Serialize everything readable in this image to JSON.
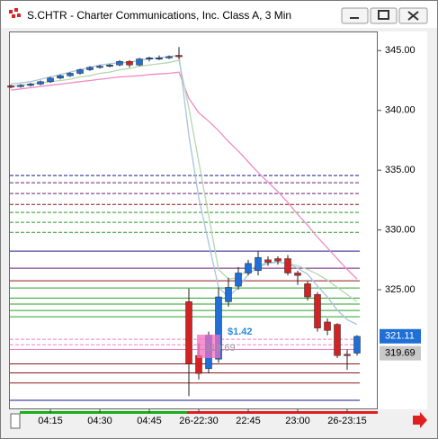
{
  "window_title": "S.CHTR - Charter Communications, Inc. Class A, 3 Min",
  "chart_data": {
    "type": "candlestick",
    "categories": [
      null,
      null,
      null,
      null,
      "04:15",
      null,
      null,
      null,
      null,
      "04:30",
      null,
      null,
      null,
      null,
      "04:45",
      null,
      null,
      null,
      null,
      "26-22:30",
      null,
      null,
      null,
      null,
      "22:45",
      null,
      null,
      null,
      null,
      "23:00",
      null,
      null,
      null,
      null,
      "26-23:15",
      null
    ],
    "open": [
      342.05,
      342.0,
      342.1,
      342.2,
      342.4,
      342.7,
      342.9,
      343.1,
      343.4,
      343.6,
      343.7,
      343.8,
      344.1,
      343.8,
      344.3,
      344.4,
      344.4,
      344.6,
      324.0,
      319.5,
      318.4,
      319.2,
      324.0,
      325.3,
      326.4,
      326.6,
      327.5,
      327.6,
      327.6,
      326.4,
      325.5,
      324.6,
      322.3,
      322.1,
      319.6,
      319.7
    ],
    "high": [
      342.15,
      342.2,
      342.3,
      342.5,
      342.8,
      343.0,
      343.2,
      343.5,
      343.7,
      343.8,
      343.9,
      344.2,
      344.2,
      344.4,
      344.5,
      344.6,
      344.6,
      345.3,
      325.1,
      320.5,
      321.5,
      325.2,
      326.0,
      326.9,
      327.5,
      328.2,
      327.8,
      327.8,
      327.9,
      326.6,
      325.7,
      324.8,
      322.6,
      322.2,
      320.0,
      321.2
    ],
    "low": [
      341.85,
      341.9,
      342.0,
      342.1,
      342.3,
      342.6,
      342.8,
      343.0,
      343.3,
      343.5,
      343.6,
      343.7,
      343.6,
      343.7,
      344.1,
      344.2,
      344.3,
      344.3,
      316.1,
      317.5,
      318.0,
      318.9,
      323.6,
      325.0,
      326.2,
      326.2,
      327.0,
      327.1,
      326.2,
      325.4,
      324.1,
      321.5,
      321.2,
      319.3,
      318.3,
      319.5
    ],
    "close": [
      342.0,
      342.1,
      342.2,
      342.4,
      342.7,
      342.9,
      343.1,
      343.4,
      343.6,
      343.7,
      343.8,
      344.1,
      343.8,
      344.3,
      344.4,
      344.4,
      344.5,
      344.5,
      318.8,
      318.0,
      321.2,
      324.4,
      325.2,
      326.4,
      327.2,
      327.7,
      327.3,
      327.4,
      326.4,
      326.2,
      324.4,
      321.8,
      321.6,
      319.5,
      319.5,
      321.1
    ],
    "up_color": "#1f6fd6",
    "down_color": "#d42222",
    "overlays": [
      {
        "color": "#f08ac4",
        "values": [
          341.7,
          341.8,
          341.9,
          342.0,
          342.1,
          342.2,
          342.3,
          342.4,
          342.5,
          342.6,
          342.7,
          342.8,
          342.85,
          342.9,
          343.0,
          343.05,
          343.1,
          343.2,
          341.0,
          339.8,
          339.1,
          338.3,
          337.4,
          336.6,
          335.7,
          334.8,
          334.0,
          333.2,
          332.3,
          331.3,
          330.4,
          329.4,
          328.5,
          327.6,
          326.7,
          325.9
        ]
      },
      {
        "color": "#b4d7ae",
        "values": [
          342.0,
          342.1,
          342.2,
          342.3,
          342.4,
          342.5,
          342.6,
          342.8,
          342.9,
          343.1,
          343.2,
          343.4,
          343.5,
          343.7,
          343.8,
          343.9,
          344.0,
          344.2,
          340.2,
          335.7,
          331.2,
          326.7,
          325.9,
          326.0,
          326.7,
          327.0,
          327.3,
          327.3,
          327.2,
          327.0,
          326.7,
          326.3,
          325.8,
          325.2,
          324.6,
          324.0
        ]
      },
      {
        "color": "#a9c3dc",
        "values": [
          342.2,
          342.3,
          342.4,
          342.6,
          342.8,
          343.0,
          343.2,
          343.4,
          343.6,
          343.8,
          343.9,
          344.0,
          344.0,
          344.2,
          344.3,
          344.4,
          344.5,
          344.6,
          337.9,
          332.7,
          328.9,
          325.2,
          324.4,
          325.2,
          326.3,
          326.9,
          327.2,
          327.3,
          327.2,
          326.8,
          326.3,
          325.3,
          324.4,
          323.3,
          322.5,
          322.1
        ]
      }
    ],
    "levels": [
      {
        "value": 334.55,
        "color": "#1a1a8c",
        "dash": true
      },
      {
        "value": 333.95,
        "color": "#6a1f7a",
        "dash": true
      },
      {
        "value": 333.05,
        "color": "#6a1f7a",
        "dash": true
      },
      {
        "value": 332.14,
        "color": "#8b1a1a",
        "dash": true
      },
      {
        "value": 331.47,
        "color": "#2a9a2a",
        "dash": true
      },
      {
        "value": 330.64,
        "color": "#2a9a2a",
        "dash": true
      },
      {
        "value": 329.8,
        "color": "#2a9a2a",
        "dash": true
      },
      {
        "value": 328.23,
        "color": "#1a1a8c",
        "dash": false
      },
      {
        "value": 326.8,
        "color": "#6a1f7a",
        "dash": false
      },
      {
        "value": 325.75,
        "color": "#8b1a1a",
        "dash": false
      },
      {
        "value": 325.15,
        "color": "#2aa02a",
        "dash": false
      },
      {
        "value": 324.3,
        "color": "#2aa02a",
        "dash": false
      },
      {
        "value": 323.8,
        "color": "#2aa02a",
        "dash": false
      },
      {
        "value": 323.27,
        "color": "#2aa02a",
        "dash": false
      },
      {
        "value": 322.74,
        "color": "#2aa02a",
        "dash": false
      },
      {
        "value": 320.86,
        "color": "#f080c0",
        "dash": true
      },
      {
        "value": 320.4,
        "color": "#f080c0",
        "dash": true
      },
      {
        "value": 320.0,
        "color": "#f080c0",
        "dash": false
      },
      {
        "value": 318.8,
        "color": "#8b1a1a",
        "dash": false
      },
      {
        "value": 318.05,
        "color": "#8b1a1a",
        "dash": false
      },
      {
        "value": 317.2,
        "color": "#8b1a1a",
        "dash": false
      },
      {
        "value": 315.75,
        "color": "#1a1a8c",
        "dash": false
      }
    ],
    "price_tags": [
      {
        "value": 321.11,
        "color": "#1f6fd6"
      },
      {
        "value": 319.69,
        "color": "#c8c8c8"
      }
    ],
    "annotations": [
      {
        "text": "$1.42"
      },
      {
        "text": "319.69"
      }
    ],
    "ylim": [
      315.0,
      346.6
    ],
    "yticks": [
      {
        "value": 325,
        "label": "325.00"
      },
      {
        "value": 330,
        "label": "330.00"
      },
      {
        "value": 335,
        "label": "335.00"
      },
      {
        "value": 340,
        "label": "340.00"
      },
      {
        "value": 345,
        "label": "345.00"
      }
    ],
    "grid": false
  }
}
